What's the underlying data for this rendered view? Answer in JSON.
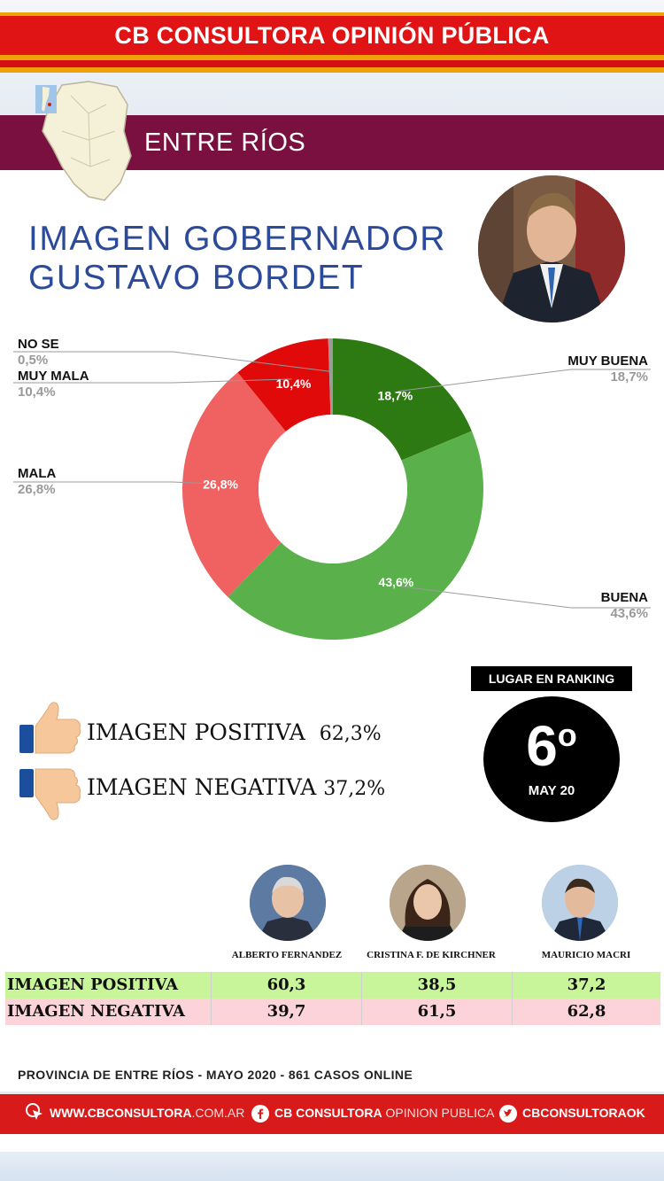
{
  "header": {
    "title": "CB CONSULTORA OPINIÓN PÚBLICA"
  },
  "province": {
    "title": "ENTRE RÍOS"
  },
  "governor": {
    "title_line1": "IMAGEN GOBERNADOR",
    "title_line2": "GUSTAVO BORDET"
  },
  "chart_data": {
    "type": "pie",
    "title": "IMAGEN GOBERNADOR GUSTAVO BORDET",
    "categories": [
      "MUY BUENA",
      "BUENA",
      "MALA",
      "MUY MALA",
      "NO SE"
    ],
    "values": [
      18.7,
      43.6,
      26.8,
      10.4,
      0.5
    ],
    "labels": [
      "18,7%",
      "43,6%",
      "26,8%",
      "10,4%",
      "0,5%"
    ],
    "colors": [
      "#2e7a12",
      "#5ab04a",
      "#f06262",
      "#e00a0a",
      "#9a9a9a"
    ],
    "donut": true
  },
  "ranking": {
    "label": "LUGAR EN RANKING",
    "value": "6",
    "ordinal": "o",
    "date": "MAY 20"
  },
  "image_summary": {
    "positive_label": "IMAGEN POSITIVA",
    "positive_value": "62,3%",
    "negative_label": "IMAGEN NEGATIVA",
    "negative_value": "37,2%"
  },
  "comparison": {
    "leaders": [
      "ALBERTO FERNANDEZ",
      "CRISTINA F. DE KIRCHNER",
      "MAURICIO MACRI"
    ],
    "rows": [
      {
        "label": "IMAGEN POSITIVA",
        "values": [
          "60,3",
          "38,5",
          "37,2"
        ]
      },
      {
        "label": "IMAGEN NEGATIVA",
        "values": [
          "39,7",
          "61,5",
          "62,8"
        ]
      }
    ]
  },
  "footer": {
    "note": "PROVINCIA DE ENTRE RÍOS - MAYO 2020 -  861 CASOS ONLINE",
    "website_bold": "WWW.CBCONSULTORA",
    "website_rest": ".COM.AR",
    "facebook_bold": "CB CONSULTORA",
    "facebook_rest": " OPINION PUBLICA",
    "twitter": "CBCONSULTORAOK"
  }
}
